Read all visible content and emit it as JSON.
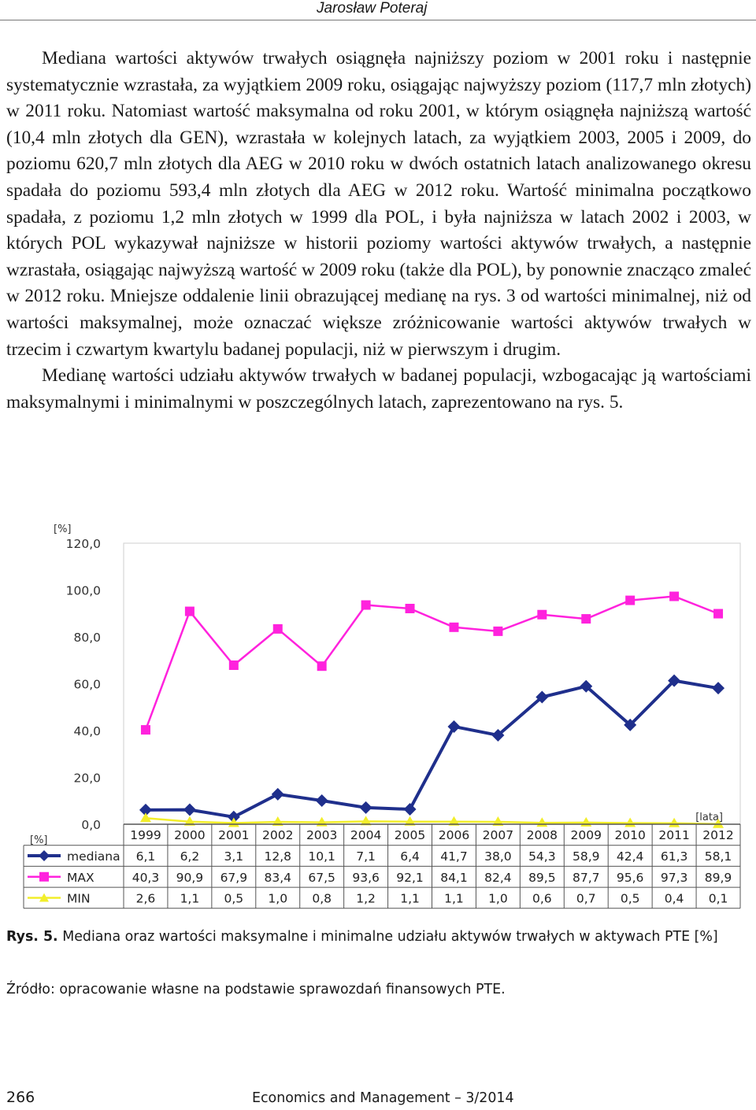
{
  "header": {
    "author": "Jarosław Poteraj"
  },
  "paragraphs": [
    "Mediana wartości aktywów trwałych osiągnęła najniższy poziom w 2001 roku i następnie systematycznie wzrastała, za wyjątkiem 2009 roku, osiągając najwyższy poziom (117,7 mln złotych) w 2011 roku. Natomiast wartość maksymalna od roku 2001, w którym osiągnęła najniższą wartość (10,4 mln złotych dla GEN), wzrastała w kolejnych latach, za wyjątkiem 2003, 2005 i 2009, do poziomu 620,7 mln złotych dla AEG w 2010 roku w dwóch ostatnich latach analizowanego okresu spadała do poziomu 593,4 mln złotych dla AEG w 2012 roku. Wartość minimalna początkowo spadała, z poziomu 1,2 mln złotych w 1999 dla POL, i była najniższa w latach 2002 i 2003, w których POL wykazywał najniższe w historii poziomy wartości aktywów trwałych, a następnie wzrastała, osiągając najwyższą wartość w 2009 roku (także dla POL), by ponownie znacząco zmaleć w 2012 roku. Mniejsze oddalenie linii obrazującej medianę na rys. 3 od wartości minimalnej, niż od wartości maksymalnej, może oznaczać większe zróżnicowanie wartości aktywów trwałych w trzecim i czwartym kwartylu badanej populacji, niż w pierwszym i drugim.",
    "Medianę wartości udziału aktywów trwałych w badanej populacji, wzbogacając ją wartościami maksymalnymi i minimalnymi w poszczególnych latach, zaprezentowano na rys. 5."
  ],
  "chart_data": {
    "type": "line",
    "y_unit_label": "[%]",
    "x_unit_label": "[lata]",
    "table_unit_label": "[%]",
    "ylim": [
      0,
      120
    ],
    "y_ticks": [
      "0,0",
      "20,0",
      "40,0",
      "60,0",
      "80,0",
      "100,0",
      "120,0"
    ],
    "grid": false,
    "categories": [
      "1999",
      "2000",
      "2001",
      "2002",
      "2003",
      "2004",
      "2005",
      "2006",
      "2007",
      "2008",
      "2009",
      "2010",
      "2011",
      "2012"
    ],
    "series": [
      {
        "name": "mediana",
        "color": "#1f2f8c",
        "marker": "diamond",
        "values": [
          6.1,
          6.2,
          3.1,
          12.8,
          10.1,
          7.1,
          6.4,
          41.7,
          38.0,
          54.3,
          58.9,
          42.4,
          61.3,
          58.1
        ],
        "labels": [
          "6,1",
          "6,2",
          "3,1",
          "12,8",
          "10,1",
          "7,1",
          "6,4",
          "41,7",
          "38,0",
          "54,3",
          "58,9",
          "42,4",
          "61,3",
          "58,1"
        ]
      },
      {
        "name": "MAX",
        "color": "#ff22dd",
        "marker": "square",
        "values": [
          40.3,
          90.9,
          67.9,
          83.4,
          67.5,
          93.6,
          92.1,
          84.1,
          82.4,
          89.5,
          87.7,
          95.6,
          97.3,
          89.9
        ],
        "labels": [
          "40,3",
          "90,9",
          "67,9",
          "83,4",
          "67,5",
          "93,6",
          "92,1",
          "84,1",
          "82,4",
          "89,5",
          "87,7",
          "95,6",
          "97,3",
          "89,9"
        ]
      },
      {
        "name": "MIN",
        "color": "#f2ee2a",
        "marker": "triangle",
        "values": [
          2.6,
          1.1,
          0.5,
          1.0,
          0.8,
          1.2,
          1.1,
          1.1,
          1.0,
          0.6,
          0.7,
          0.5,
          0.4,
          0.1
        ],
        "labels": [
          "2,6",
          "1,1",
          "0,5",
          "1,0",
          "0,8",
          "1,2",
          "1,1",
          "1,1",
          "1,0",
          "0,6",
          "0,7",
          "0,5",
          "0,4",
          "0,1"
        ]
      }
    ]
  },
  "caption": {
    "label": "Rys. 5.",
    "text": "Mediana oraz wartości maksymalne i minimalne udziału aktywów trwałych w aktywach PTE [%]"
  },
  "source": "Źródło: opracowanie własne na podstawie sprawozdań finansowych PTE.",
  "footer": {
    "page_number": "266",
    "journal": "Economics and Management – 3/2014"
  }
}
